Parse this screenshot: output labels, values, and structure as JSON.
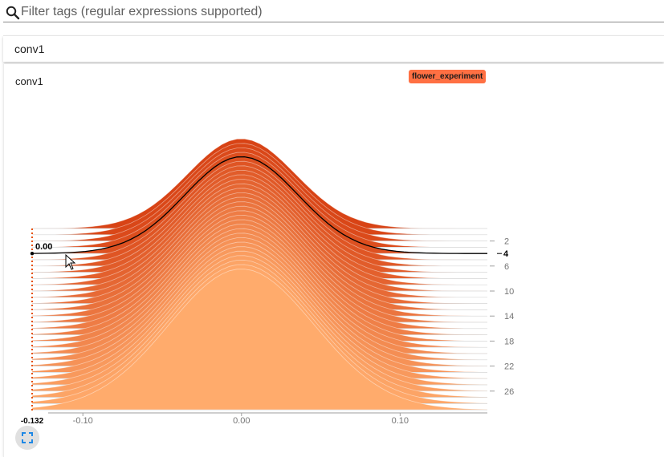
{
  "filter": {
    "placeholder": "Filter tags (regular expressions supported)",
    "icon": "search-icon"
  },
  "group": {
    "title": "conv1"
  },
  "card": {
    "title": "conv1",
    "run_label": "flower_experiment",
    "run_color": "#ff7043",
    "fullscreen_icon": "fullscreen-icon"
  },
  "chart_data": {
    "type": "area",
    "mode": "offset histogram",
    "series_name": "flower_experiment",
    "x_ticks": [
      -0.1,
      0.0,
      0.1
    ],
    "x_tick_labels": [
      "-0.10",
      "0.00",
      "0.10"
    ],
    "xlim": [
      -0.132,
      0.155
    ],
    "y_ticks": [
      2,
      6,
      10,
      14,
      18,
      22,
      26
    ],
    "y_tick_labels": [
      "2",
      "6",
      "10",
      "14",
      "18",
      "22",
      "26"
    ],
    "steps": [
      0,
      29
    ],
    "colors": {
      "newest": "#d84315",
      "oldest": "#ffab6c",
      "hover_line": "#000000"
    },
    "hover": {
      "step": 4,
      "step_label": "4",
      "x": -0.132,
      "x_label": "-0.132",
      "value_label": "0.00"
    }
  }
}
